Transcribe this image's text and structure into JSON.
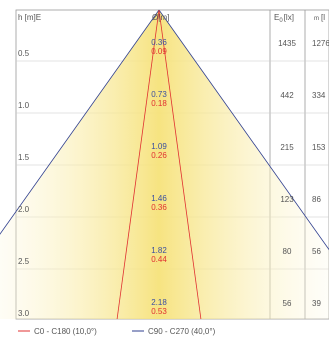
{
  "chart_data": {
    "type": "cone-diagram",
    "headers": {
      "height": "h [m]E",
      "diameter_prefix": "Ø",
      "diameter_unit": "[m]",
      "illuminance": "E",
      "illuminance_sub": "0",
      "illuminance_unit": "[lx]",
      "last_col_prefix": "m",
      "last_col_unit": "[l"
    },
    "rows": [
      {
        "h": "0.5",
        "d_c90": "0.36",
        "d_c0": "0.09",
        "e0": "1435",
        "em": "1276"
      },
      {
        "h": "1.0",
        "d_c90": "0.73",
        "d_c0": "0.18",
        "e0": "442",
        "em": "334"
      },
      {
        "h": "1.5",
        "d_c90": "1.09",
        "d_c0": "0.26",
        "e0": "215",
        "em": "153"
      },
      {
        "h": "2.0",
        "d_c90": "1.46",
        "d_c0": "0.36",
        "e0": "123",
        "em": "86"
      },
      {
        "h": "2.5",
        "d_c90": "1.82",
        "d_c0": "0.44",
        "e0": "80",
        "em": "56"
      },
      {
        "h": "3.0",
        "d_c90": "2.18",
        "d_c0": "0.53",
        "e0": "56",
        "em": "39"
      }
    ],
    "legend": [
      {
        "label": "C0 - C180 (10,0°)",
        "color": "#e03030",
        "angle_deg": 10
      },
      {
        "label": "C90 - C270 (40,0°)",
        "color": "#2f3f8f",
        "angle_deg": 40
      }
    ],
    "colors": {
      "cone_fill": "#f6e27a",
      "grid": "#c8c8c8",
      "frame": "#9a9a9a",
      "text": "#555555",
      "c0_text": "#e03030",
      "c90_text": "#3a4fa0"
    }
  }
}
